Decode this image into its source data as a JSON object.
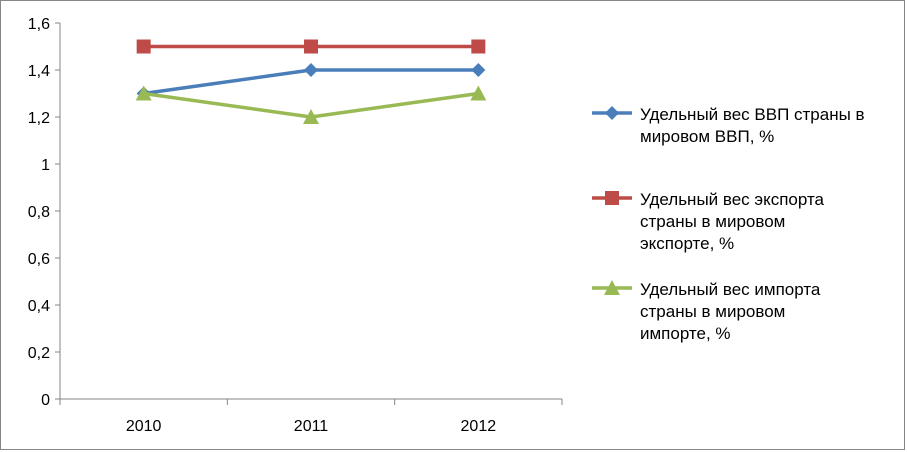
{
  "chart_data": {
    "type": "line",
    "categories": [
      "2010",
      "2011",
      "2012"
    ],
    "ylim": [
      0,
      1.6
    ],
    "yticks": [
      "0",
      "0,2",
      "0,4",
      "0,6",
      "0,8",
      "1",
      "1,2",
      "1,4",
      "1,6"
    ],
    "grid": false,
    "legend_position": "right",
    "series": [
      {
        "name_lines": [
          "Удельный вес ВВП страны в",
          "мировом ВВП, %"
        ],
        "values": [
          1.3,
          1.4,
          1.4
        ],
        "color": "#4a7ebb",
        "marker": "diamond"
      },
      {
        "name_lines": [
          "Удельный вес экспорта",
          "страны в мировом",
          "экспорте, %"
        ],
        "values": [
          1.5,
          1.5,
          1.5
        ],
        "color": "#be4b48",
        "marker": "square"
      },
      {
        "name_lines": [
          "Удельный вес импорта",
          "страны в мировом",
          "импорте, %"
        ],
        "values": [
          1.3,
          1.2,
          1.3
        ],
        "color": "#98b954",
        "marker": "triangle"
      }
    ]
  }
}
